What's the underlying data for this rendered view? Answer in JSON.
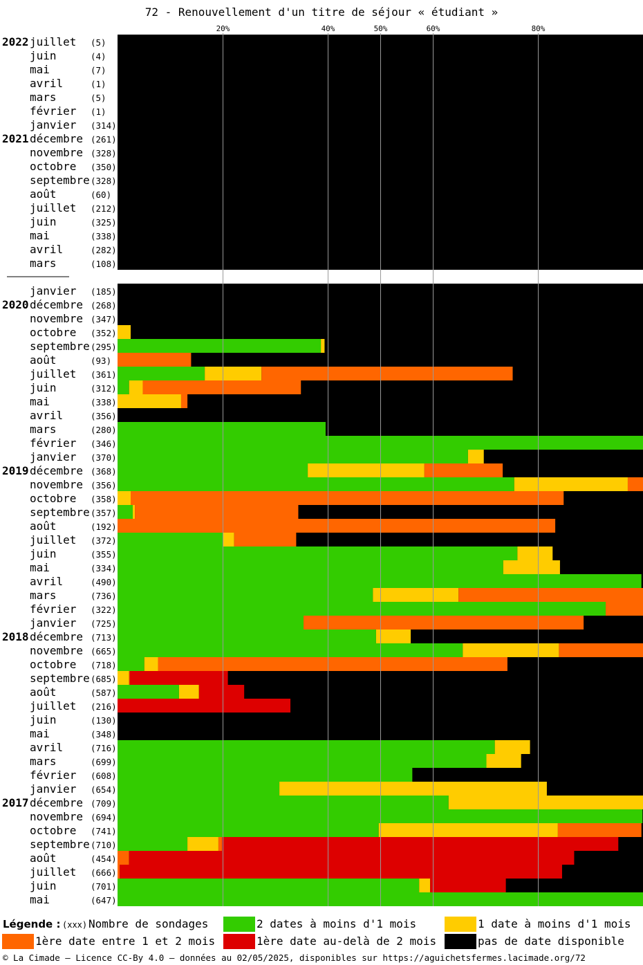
{
  "title": "72 - Renouvellement d'un titre de séjour « étudiant »",
  "chart_data": {
    "type": "bar",
    "orientation": "horizontal",
    "stacked": true,
    "x_axis_ticks": [
      "20%",
      "40%",
      "50%",
      "60%",
      "80%"
    ],
    "xlim": [
      0,
      100
    ],
    "grid": true,
    "colors": {
      "deux_dates": "#33cc00",
      "une_date": "#ffcc00",
      "entre_1_2_mois": "#ff6600",
      "au_dela_2_mois": "#dd0000",
      "pas_de_date": "#000000"
    },
    "series_order": [
      "deux_dates",
      "une_date",
      "entre_1_2_mois",
      "au_dela_2_mois"
    ],
    "groups": [
      {
        "rows": [
          {
            "year": "2022",
            "month": "juillet",
            "n": "(5)",
            "v": [
              0,
              0,
              0,
              0
            ]
          },
          {
            "year": "",
            "month": "juin",
            "n": "(4)",
            "v": [
              0,
              0,
              0,
              0
            ]
          },
          {
            "year": "",
            "month": "mai",
            "n": "(7)",
            "v": [
              0,
              0,
              0,
              0
            ]
          },
          {
            "year": "",
            "month": "avril",
            "n": "(1)",
            "v": [
              0,
              0,
              0,
              0
            ]
          },
          {
            "year": "",
            "month": "mars",
            "n": "(5)",
            "v": [
              0,
              0,
              0,
              0
            ]
          },
          {
            "year": "",
            "month": "février",
            "n": "(1)",
            "v": [
              0,
              0,
              0,
              0
            ]
          },
          {
            "year": "",
            "month": "janvier",
            "n": "(314)",
            "v": [
              0,
              0,
              0,
              0
            ]
          },
          {
            "year": "2021",
            "month": "décembre",
            "n": "(261)",
            "v": [
              0,
              0,
              0,
              0
            ]
          },
          {
            "year": "",
            "month": "novembre",
            "n": "(328)",
            "v": [
              0,
              0,
              0,
              0
            ]
          },
          {
            "year": "",
            "month": "octobre",
            "n": "(350)",
            "v": [
              0,
              0,
              0,
              0
            ]
          },
          {
            "year": "",
            "month": "septembre",
            "n": "(328)",
            "v": [
              0,
              0,
              0,
              0
            ]
          },
          {
            "year": "",
            "month": "août",
            "n": "(60)",
            "v": [
              0,
              0,
              0,
              0
            ]
          },
          {
            "year": "",
            "month": "juillet",
            "n": "(212)",
            "v": [
              0,
              0,
              0,
              0
            ]
          },
          {
            "year": "",
            "month": "juin",
            "n": "(325)",
            "v": [
              0,
              0,
              0,
              0
            ]
          },
          {
            "year": "",
            "month": "mai",
            "n": "(338)",
            "v": [
              0,
              0,
              0,
              0
            ]
          },
          {
            "year": "",
            "month": "avril",
            "n": "(282)",
            "v": [
              0,
              0,
              0,
              0
            ]
          },
          {
            "year": "",
            "month": "mars",
            "n": "(108)",
            "v": [
              0,
              0,
              0,
              0
            ]
          }
        ]
      },
      {
        "rows": [
          {
            "year": "",
            "month": "janvier",
            "n": "(185)",
            "v": [
              0,
              0,
              0,
              0
            ]
          },
          {
            "year": "2020",
            "month": "décembre",
            "n": "(268)",
            "v": [
              0,
              0,
              0,
              0
            ]
          },
          {
            "year": "",
            "month": "novembre",
            "n": "(347)",
            "v": [
              0,
              0,
              0,
              0
            ]
          },
          {
            "year": "",
            "month": "octobre",
            "n": "(352)",
            "v": [
              0,
              2.5,
              0,
              0
            ]
          },
          {
            "year": "",
            "month": "septembre",
            "n": "(295)",
            "v": [
              38.7,
              0.7,
              0,
              0
            ]
          },
          {
            "year": "",
            "month": "août",
            "n": "(93)",
            "v": [
              0,
              0,
              14,
              0
            ]
          },
          {
            "year": "",
            "month": "juillet",
            "n": "(361)",
            "v": [
              16.6,
              10.8,
              47.8,
              0
            ]
          },
          {
            "year": "",
            "month": "juin",
            "n": "(312)",
            "v": [
              2.2,
              2.6,
              30.1,
              0
            ]
          },
          {
            "year": "",
            "month": "mai",
            "n": "(338)",
            "v": [
              0,
              12.1,
              1.2,
              0
            ]
          },
          {
            "year": "",
            "month": "avril",
            "n": "(356)",
            "v": [
              0,
              0,
              0,
              0
            ]
          },
          {
            "year": "",
            "month": "mars",
            "n": "(280)",
            "v": [
              39.6,
              0,
              0,
              0
            ]
          },
          {
            "year": "",
            "month": "février",
            "n": "(346)",
            "v": [
              100,
              0,
              0,
              0
            ]
          },
          {
            "year": "",
            "month": "janvier",
            "n": "(370)",
            "v": [
              66.7,
              3,
              0,
              0
            ]
          },
          {
            "year": "2019",
            "month": "décembre",
            "n": "(368)",
            "v": [
              36.2,
              22.2,
              14.9,
              0
            ]
          },
          {
            "year": "",
            "month": "novembre",
            "n": "(356)",
            "v": [
              75.5,
              21.6,
              2.9,
              0
            ]
          },
          {
            "year": "",
            "month": "octobre",
            "n": "(358)",
            "v": [
              0,
              2.5,
              82.4,
              0
            ]
          },
          {
            "year": "",
            "month": "septembre",
            "n": "(357)",
            "v": [
              2.9,
              0.4,
              31.1,
              0
            ]
          },
          {
            "year": "",
            "month": "août",
            "n": "(192)",
            "v": [
              0,
              0,
              83.3,
              0
            ]
          },
          {
            "year": "",
            "month": "juillet",
            "n": "(372)",
            "v": [
              20.1,
              2.1,
              11.8,
              0
            ]
          },
          {
            "year": "",
            "month": "juin",
            "n": "(355)",
            "v": [
              76.1,
              6.7,
              0,
              0
            ]
          },
          {
            "year": "",
            "month": "mai",
            "n": "(334)",
            "v": [
              73.4,
              10.8,
              0,
              0
            ]
          },
          {
            "year": "",
            "month": "avril",
            "n": "(490)",
            "v": [
              99.7,
              0,
              0,
              0
            ]
          },
          {
            "year": "",
            "month": "mars",
            "n": "(736)",
            "v": [
              48.6,
              16.3,
              35.1,
              0
            ]
          },
          {
            "year": "",
            "month": "février",
            "n": "(322)",
            "v": [
              92.9,
              0,
              7.1,
              0
            ]
          },
          {
            "year": "",
            "month": "janvier",
            "n": "(725)",
            "v": [
              35.4,
              0,
              53.3,
              0
            ]
          },
          {
            "year": "2018",
            "month": "décembre",
            "n": "(713)",
            "v": [
              49.2,
              6.6,
              0,
              0
            ]
          },
          {
            "year": "",
            "month": "novembre",
            "n": "(665)",
            "v": [
              65.7,
              18.3,
              16,
              0
            ]
          },
          {
            "year": "",
            "month": "octobre",
            "n": "(718)",
            "v": [
              5.1,
              2.6,
              66.5,
              0
            ]
          },
          {
            "year": "",
            "month": "septembre",
            "n": "(685)",
            "v": [
              0,
              2.2,
              0.1,
              18.7
            ]
          },
          {
            "year": "",
            "month": "août",
            "n": "(587)",
            "v": [
              11.7,
              3.8,
              0,
              8.6
            ]
          },
          {
            "year": "",
            "month": "juillet",
            "n": "(216)",
            "v": [
              0,
              0,
              0,
              32.9
            ]
          },
          {
            "year": "",
            "month": "juin",
            "n": "(130)",
            "v": [
              0,
              0,
              0,
              0
            ]
          },
          {
            "year": "",
            "month": "mai",
            "n": "(348)",
            "v": [
              0,
              0,
              0,
              0
            ]
          },
          {
            "year": "",
            "month": "avril",
            "n": "(716)",
            "v": [
              71.8,
              6.7,
              0,
              0
            ]
          },
          {
            "year": "",
            "month": "mars",
            "n": "(699)",
            "v": [
              70.2,
              6.6,
              0,
              0
            ]
          },
          {
            "year": "",
            "month": "février",
            "n": "(608)",
            "v": [
              56.1,
              0,
              0,
              0
            ]
          },
          {
            "year": "",
            "month": "janvier",
            "n": "(654)",
            "v": [
              30.8,
              50.9,
              0,
              0
            ]
          },
          {
            "year": "2017",
            "month": "décembre",
            "n": "(709)",
            "v": [
              63,
              37,
              0,
              0
            ]
          },
          {
            "year": "",
            "month": "novembre",
            "n": "(694)",
            "v": [
              99.9,
              0,
              0,
              0
            ]
          },
          {
            "year": "",
            "month": "octobre",
            "n": "(741)",
            "v": [
              49.7,
              34.1,
              15.9,
              0
            ]
          },
          {
            "year": "",
            "month": "septembre",
            "n": "(710)",
            "v": [
              13.3,
              5.9,
              0.7,
              75.4
            ]
          },
          {
            "year": "",
            "month": "août",
            "n": "(454)",
            "v": [
              0,
              0,
              2.2,
              84.7
            ]
          },
          {
            "year": "",
            "month": "juillet",
            "n": "(666)",
            "v": [
              0,
              0,
              0.4,
              84.2
            ]
          },
          {
            "year": "",
            "month": "juin",
            "n": "(701)",
            "v": [
              57.4,
              2.1,
              0,
              14.4
            ]
          },
          {
            "year": "",
            "month": "mai",
            "n": "(647)",
            "v": [
              100,
              0,
              0,
              0
            ]
          }
        ]
      }
    ]
  },
  "legend": {
    "title": "Légende :",
    "xxx": "(xxx)",
    "items": [
      {
        "key": "n",
        "label": "Nombre de sondages"
      },
      {
        "key": "deux_dates",
        "label": "2 dates à moins d'1 mois"
      },
      {
        "key": "une_date",
        "label": "1 date à moins d'1 mois"
      },
      {
        "key": "entre_1_2_mois",
        "label": "1ère date entre 1 et 2 mois"
      },
      {
        "key": "au_dela_2_mois",
        "label": "1ère date au-delà de 2 mois"
      },
      {
        "key": "pas_de_date",
        "label": "pas de date disponible"
      }
    ]
  },
  "footer": "© La Cimade — Licence CC-By 4.0 — données au 02/05/2025, disponibles sur https://aguichetsfermes.lacimade.org/72"
}
